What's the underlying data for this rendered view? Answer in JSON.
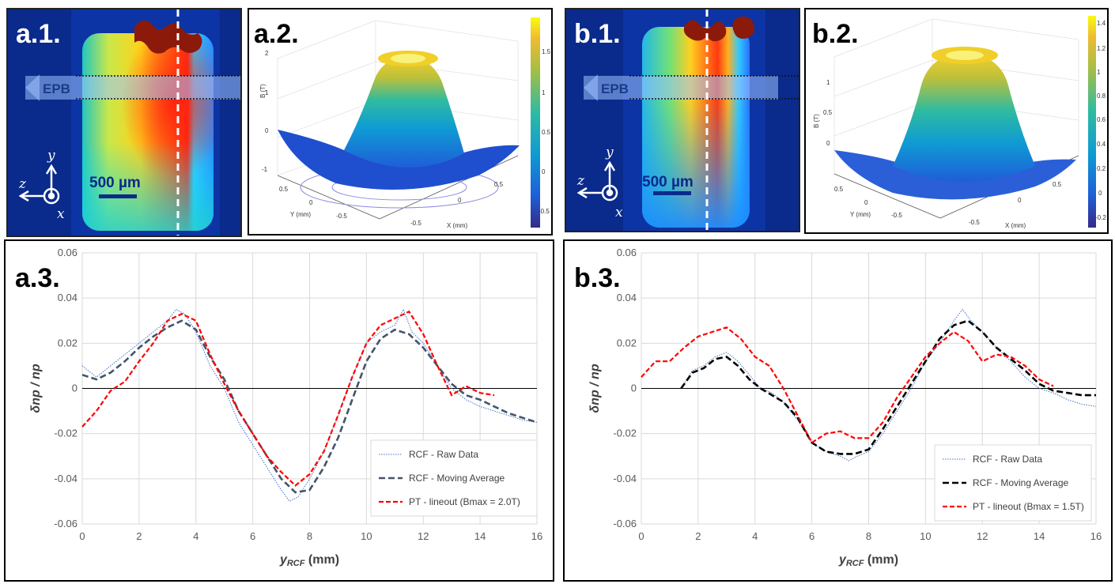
{
  "panels": {
    "a1": {
      "label": "a.1.",
      "epb": "EPB",
      "scale": "500 µm",
      "axes": [
        "y",
        "z",
        "x"
      ]
    },
    "a2": {
      "label": "a.2.",
      "zlabel": "B (T)",
      "xlabel": "X (mm)",
      "ylabel": "Y (mm)",
      "zticks": [
        "2",
        "1",
        "0",
        "-1"
      ],
      "yticks": [
        "0.5",
        "0",
        "-0.5"
      ],
      "xticks": [
        "-0.5",
        "0",
        "0.5"
      ],
      "cbticks": [
        "1.5",
        "1",
        "0.5",
        "0",
        "-0.5"
      ]
    },
    "b1": {
      "label": "b.1.",
      "epb": "EPB",
      "scale": "500 µm",
      "axes": [
        "y",
        "z",
        "x"
      ]
    },
    "b2": {
      "label": "b.2.",
      "zlabel": "B (T)",
      "xlabel": "X (mm)",
      "ylabel": "Y (mm)",
      "zticks": [
        "1",
        "0.5",
        "0"
      ],
      "yticks": [
        "0.5",
        "0",
        "-0.5"
      ],
      "xticks": [
        "-0.5",
        "0",
        "0.5"
      ],
      "cbticks": [
        "1.4",
        "1.2",
        "1",
        "0.8",
        "0.6",
        "0.4",
        "0.2",
        "0",
        "-0.2"
      ]
    },
    "a3": {
      "label": "a.3."
    },
    "b3": {
      "label": "b.3."
    }
  },
  "colors": {
    "raw": "#4472c4",
    "avg_a": "#44546a",
    "avg_b": "#000000",
    "pt": "#ff0000",
    "grid": "#d9d9d9",
    "field_bg": "#0a2a8c"
  },
  "chart_data": [
    {
      "type": "line",
      "id": "a3",
      "xlabel": "yRCF (mm)",
      "ylabel": "δnp / np",
      "xlim": [
        0,
        16
      ],
      "ylim": [
        -0.06,
        0.06
      ],
      "xticks": [
        "0",
        "2",
        "4",
        "6",
        "8",
        "10",
        "12",
        "14",
        "16"
      ],
      "yticks": [
        "0.06",
        "0.04",
        "0.02",
        "0",
        "-0.02",
        "-0.04",
        "-0.06"
      ],
      "legend_position": "bottom-right",
      "series": [
        {
          "name": "RCF - Raw Data",
          "style": "dotted",
          "x": [
            0,
            0.5,
            1,
            1.5,
            2,
            2.5,
            3,
            3.3,
            3.6,
            4,
            4.5,
            5,
            5.5,
            6,
            6.5,
            7,
            7.3,
            7.6,
            8,
            8.5,
            9,
            9.5,
            10,
            10.5,
            11,
            11.3,
            11.6,
            12,
            12.5,
            13,
            13.5,
            14,
            14.5,
            15,
            15.5,
            16
          ],
          "y": [
            0.01,
            0.005,
            0.01,
            0.015,
            0.02,
            0.025,
            0.03,
            0.035,
            0.033,
            0.025,
            0.01,
            0.0,
            -0.015,
            -0.025,
            -0.035,
            -0.045,
            -0.05,
            -0.048,
            -0.04,
            -0.028,
            -0.012,
            0.005,
            0.02,
            0.025,
            0.028,
            0.035,
            0.025,
            0.02,
            0.01,
            0.0,
            -0.005,
            -0.008,
            -0.01,
            -0.012,
            -0.014,
            -0.015
          ]
        },
        {
          "name": "RCF - Moving Average",
          "style": "dashed",
          "x": [
            0,
            0.5,
            1,
            1.5,
            2,
            2.5,
            3,
            3.5,
            4,
            4.5,
            5,
            5.5,
            6,
            6.5,
            7,
            7.5,
            8,
            8.5,
            9,
            9.5,
            10,
            10.5,
            11,
            11.5,
            12,
            12.5,
            13,
            13.5,
            14,
            14.5,
            15,
            15.5,
            16
          ],
          "y": [
            0.006,
            0.004,
            0.007,
            0.012,
            0.018,
            0.023,
            0.027,
            0.03,
            0.026,
            0.014,
            0.004,
            -0.01,
            -0.02,
            -0.03,
            -0.04,
            -0.046,
            -0.045,
            -0.035,
            -0.022,
            -0.005,
            0.012,
            0.022,
            0.026,
            0.024,
            0.018,
            0.01,
            0.002,
            -0.003,
            -0.005,
            -0.008,
            -0.011,
            -0.013,
            -0.015
          ]
        },
        {
          "name": "PT - lineout (Bmax = 2.0T)",
          "style": "dashed",
          "x": [
            0,
            0.5,
            1,
            1.5,
            2,
            2.5,
            3,
            3.5,
            4,
            4.5,
            5,
            5.5,
            6,
            6.5,
            7,
            7.5,
            8,
            8.5,
            9,
            9.5,
            10,
            10.5,
            11,
            11.5,
            12,
            12.5,
            13,
            13.5,
            14,
            14.5
          ],
          "y": [
            -0.017,
            -0.01,
            -0.001,
            0.003,
            0.012,
            0.02,
            0.03,
            0.033,
            0.03,
            0.015,
            0.002,
            -0.01,
            -0.02,
            -0.03,
            -0.037,
            -0.043,
            -0.038,
            -0.028,
            -0.012,
            0.005,
            0.02,
            0.028,
            0.031,
            0.034,
            0.024,
            0.01,
            -0.003,
            0.001,
            -0.002,
            -0.003
          ]
        }
      ]
    },
    {
      "type": "line",
      "id": "b3",
      "xlabel": "yRCF (mm)",
      "ylabel": "δnp / np",
      "xlim": [
        0,
        16
      ],
      "ylim": [
        -0.06,
        0.06
      ],
      "xticks": [
        "0",
        "2",
        "4",
        "6",
        "8",
        "10",
        "12",
        "14",
        "16"
      ],
      "yticks": [
        "0.06",
        "0.04",
        "0.02",
        "0",
        "-0.02",
        "-0.04",
        "-0.06"
      ],
      "legend_position": "bottom-right",
      "series": [
        {
          "name": "RCF - Raw Data",
          "style": "dotted",
          "x": [
            1.4,
            1.8,
            2.2,
            2.6,
            3,
            3.4,
            3.8,
            4.2,
            4.6,
            5,
            5.5,
            6,
            6.5,
            7,
            7.3,
            7.6,
            8,
            8.5,
            9,
            9.5,
            10,
            10.5,
            11,
            11.3,
            11.6,
            12,
            12.5,
            13,
            13.5,
            14,
            14.5,
            15,
            15.5,
            16
          ],
          "y": [
            0.0,
            0.008,
            0.01,
            0.014,
            0.016,
            0.012,
            0.006,
            0.0,
            -0.002,
            -0.006,
            -0.014,
            -0.024,
            -0.028,
            -0.03,
            -0.032,
            -0.03,
            -0.028,
            -0.02,
            -0.01,
            0.0,
            0.012,
            0.02,
            0.03,
            0.035,
            0.03,
            0.025,
            0.018,
            0.012,
            0.005,
            0.0,
            -0.002,
            -0.005,
            -0.007,
            -0.008
          ]
        },
        {
          "name": "RCF - Moving Average",
          "style": "dashed",
          "x": [
            1.4,
            1.8,
            2.2,
            2.6,
            3,
            3.4,
            3.8,
            4.2,
            4.6,
            5,
            5.5,
            6,
            6.5,
            7,
            7.5,
            8,
            8.5,
            9,
            9.5,
            10,
            10.5,
            11,
            11.5,
            12,
            12.5,
            13,
            13.5,
            14,
            14.5,
            15,
            15.5,
            16
          ],
          "y": [
            0.0,
            0.007,
            0.009,
            0.013,
            0.014,
            0.01,
            0.004,
            0.0,
            -0.003,
            -0.006,
            -0.013,
            -0.024,
            -0.028,
            -0.029,
            -0.029,
            -0.027,
            -0.018,
            -0.008,
            0.002,
            0.012,
            0.022,
            0.028,
            0.03,
            0.025,
            0.018,
            0.013,
            0.008,
            0.002,
            -0.001,
            -0.002,
            -0.003,
            -0.003
          ]
        },
        {
          "name": "PT - lineout (Bmax = 1.5T)",
          "style": "dashed",
          "x": [
            0,
            0.5,
            1,
            1.5,
            2,
            2.5,
            3,
            3.5,
            4,
            4.5,
            5,
            5.5,
            6,
            6.5,
            7,
            7.5,
            8,
            8.5,
            9,
            9.5,
            10,
            10.5,
            11,
            11.5,
            12,
            12.5,
            13,
            13.5,
            14,
            14.5
          ],
          "y": [
            0.005,
            0.012,
            0.012,
            0.018,
            0.023,
            0.025,
            0.027,
            0.022,
            0.014,
            0.01,
            0.0,
            -0.012,
            -0.024,
            -0.02,
            -0.019,
            -0.022,
            -0.022,
            -0.015,
            -0.004,
            0.005,
            0.014,
            0.02,
            0.025,
            0.021,
            0.012,
            0.015,
            0.014,
            0.01,
            0.004,
            0.001
          ]
        }
      ]
    }
  ]
}
